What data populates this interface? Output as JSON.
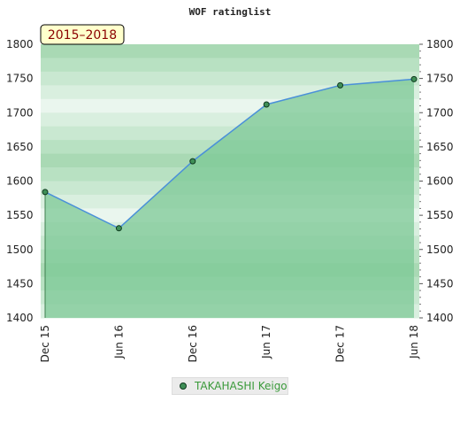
{
  "chart_data": {
    "type": "area",
    "title": "WOF ratinglist",
    "period_label": "2015–2018",
    "x": [
      "Dec 15",
      "Jun 16",
      "Dec 16",
      "Jun 17",
      "Dec 17",
      "Jun 18"
    ],
    "series": [
      {
        "name": "TAKAHASHI Keigo",
        "values": [
          1584,
          1531,
          1629,
          1712,
          1740,
          1749
        ]
      }
    ],
    "ylim": [
      1400,
      1800
    ],
    "yticks": [
      1400,
      1450,
      1500,
      1550,
      1600,
      1650,
      1700,
      1750,
      1800
    ],
    "y_axis_both_sides": true,
    "legend_position": "bottom-center",
    "colors": {
      "area_fill": "#7cc895",
      "line": "#4a90d9",
      "marker": "#3f8f57",
      "marker_edge": "#0f3a1f",
      "period_bg": "#ffffcc",
      "period_text": "#8b0000",
      "legend_text": "#3a9a3a"
    }
  }
}
